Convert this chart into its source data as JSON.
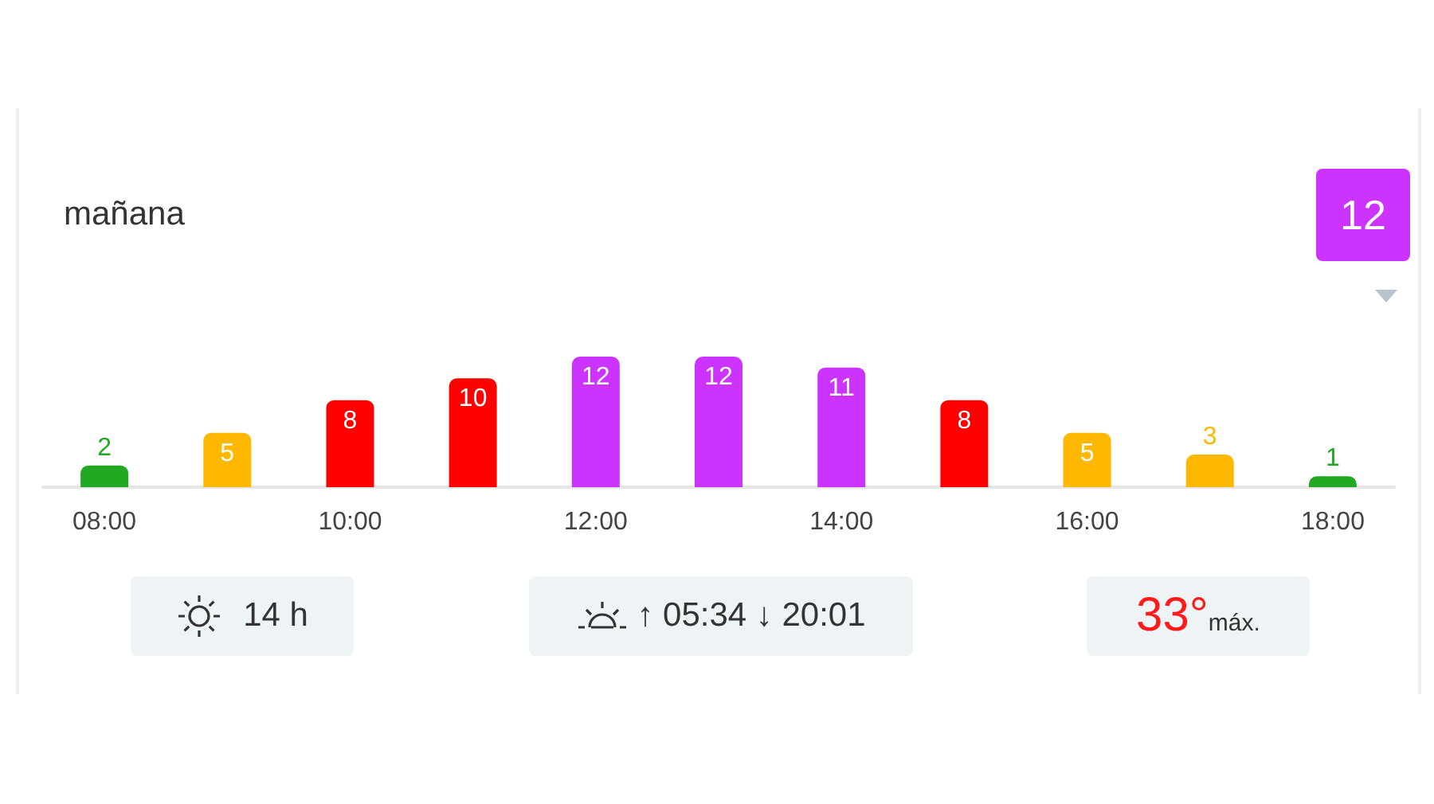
{
  "chart_data": {
    "type": "bar",
    "title": "mañana",
    "categories": [
      "08:00",
      null,
      "10:00",
      null,
      "12:00",
      null,
      "14:00",
      null,
      "16:00",
      null,
      "18:00"
    ],
    "values": [
      2,
      5,
      8,
      10,
      12,
      12,
      11,
      8,
      5,
      3,
      1
    ],
    "colors": [
      "#22a822",
      "#ffb700",
      "#ff0000",
      "#ff0000",
      "#cc33ff",
      "#cc33ff",
      "#cc33ff",
      "#ff0000",
      "#ffb700",
      "#ffb700",
      "#22a822"
    ],
    "data_labels": true,
    "grid": false,
    "annotations": [
      "12",
      "14 h",
      "↑ 05:34 ↓ 20:01",
      "33°",
      "máx."
    ]
  }
}
